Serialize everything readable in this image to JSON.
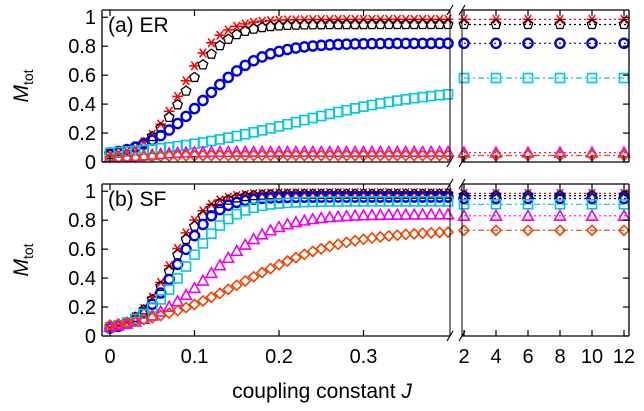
{
  "chart_data": [
    {
      "type": "scatter",
      "panel_label": "(a) ER",
      "ylabel_main": "M",
      "ylabel_sub": "tot",
      "ylim": [
        0,
        1.05
      ],
      "yticks": [
        0,
        0.2,
        0.4,
        0.6,
        0.8,
        1
      ],
      "ytick_labels": [
        "0",
        "0.2",
        "0.4",
        "0.6",
        "0.8",
        "1"
      ],
      "x_main_range": [
        0,
        0.4
      ],
      "x_right_range": [
        2,
        12
      ],
      "x_main_step": 0.01,
      "x_right_values": [
        2,
        4,
        6,
        8,
        10,
        12
      ],
      "grid": false,
      "series": [
        {
          "marker": "star",
          "color": "#ff0000",
          "plateau": 0.985,
          "midpoint": 0.085,
          "width": 0.022,
          "floor": 0.03,
          "right_values": [
            0.985,
            0.985,
            0.985,
            0.985,
            0.985,
            0.985
          ]
        },
        {
          "marker": "pentagon",
          "color": "#000000",
          "plateau": 0.95,
          "midpoint": 0.09,
          "width": 0.024,
          "floor": 0.03,
          "right_values": [
            0.95,
            0.95,
            0.95,
            0.95,
            0.95,
            0.95
          ]
        },
        {
          "marker": "circle",
          "color": "#0000dd",
          "plateau": 0.82,
          "midpoint": 0.11,
          "width": 0.035,
          "floor": 0.03,
          "right_values": [
            0.82,
            0.82,
            0.82,
            0.82,
            0.82,
            0.82
          ]
        },
        {
          "marker": "square",
          "color": "#00c8d8",
          "plateau": 0.52,
          "midpoint": 0.22,
          "width": 0.085,
          "floor": 0.03,
          "right_values": [
            0.58,
            0.58,
            0.58,
            0.58,
            0.58,
            0.58
          ]
        },
        {
          "marker": "triangle",
          "color": "#ee00ee",
          "plateau": 0.07,
          "midpoint": 0.05,
          "width": 0.02,
          "floor": 0.03,
          "right_values": [
            0.065,
            0.065,
            0.065,
            0.065,
            0.065,
            0.065
          ]
        },
        {
          "marker": "diamond",
          "color": "#ee4400",
          "plateau": 0.045,
          "midpoint": 0.05,
          "width": 0.02,
          "floor": 0.03,
          "right_values": [
            0.045,
            0.045,
            0.045,
            0.045,
            0.045,
            0.045
          ]
        }
      ]
    },
    {
      "type": "scatter",
      "panel_label": "(b) SF",
      "ylabel_main": "M",
      "ylabel_sub": "tot",
      "xlabel": "coupling constant",
      "xlabel_var": "J",
      "ylim": [
        0,
        1.05
      ],
      "yticks": [
        0,
        0.2,
        0.4,
        0.6,
        0.8,
        1
      ],
      "ytick_labels": [
        "0",
        "0.2",
        "0.4",
        "0.6",
        "0.8",
        "1"
      ],
      "x_main_range": [
        0,
        0.4
      ],
      "x_right_range": [
        2,
        12
      ],
      "x_main_step": 0.01,
      "x_right_values": [
        2,
        4,
        6,
        8,
        10,
        12
      ],
      "xticks_main": [
        0,
        0.1,
        0.2,
        0.3
      ],
      "xtick_labels_main": [
        "0",
        "0.1",
        "0.2",
        "0.3"
      ],
      "xticks_right": [
        2,
        4,
        6,
        8,
        10,
        12
      ],
      "xtick_labels_right": [
        "2",
        "4",
        "6",
        "8",
        "10",
        "12"
      ],
      "grid": false,
      "series": [
        {
          "marker": "star",
          "color": "#ff0000",
          "plateau": 0.99,
          "midpoint": 0.072,
          "width": 0.02,
          "floor": 0.03,
          "right_values": [
            0.985,
            0.985,
            0.985,
            0.985,
            0.985,
            0.985
          ]
        },
        {
          "marker": "pentagon",
          "color": "#000000",
          "plateau": 0.98,
          "midpoint": 0.075,
          "width": 0.021,
          "floor": 0.03,
          "right_values": [
            0.97,
            0.97,
            0.97,
            0.97,
            0.97,
            0.97
          ]
        },
        {
          "marker": "circle",
          "color": "#0000dd",
          "plateau": 0.96,
          "midpoint": 0.08,
          "width": 0.022,
          "floor": 0.03,
          "right_values": [
            0.95,
            0.95,
            0.95,
            0.95,
            0.95,
            0.95
          ]
        },
        {
          "marker": "square",
          "color": "#00c8d8",
          "plateau": 0.93,
          "midpoint": 0.09,
          "width": 0.027,
          "floor": 0.03,
          "right_values": [
            0.91,
            0.91,
            0.91,
            0.91,
            0.91,
            0.91
          ]
        },
        {
          "marker": "triangle",
          "color": "#ee00ee",
          "plateau": 0.84,
          "midpoint": 0.12,
          "width": 0.038,
          "floor": 0.03,
          "right_values": [
            0.83,
            0.83,
            0.83,
            0.83,
            0.83,
            0.83
          ]
        },
        {
          "marker": "diamond",
          "color": "#ee4400",
          "plateau": 0.73,
          "midpoint": 0.16,
          "width": 0.06,
          "floor": 0.03,
          "right_values": [
            0.73,
            0.73,
            0.73,
            0.73,
            0.73,
            0.73
          ]
        }
      ]
    }
  ]
}
